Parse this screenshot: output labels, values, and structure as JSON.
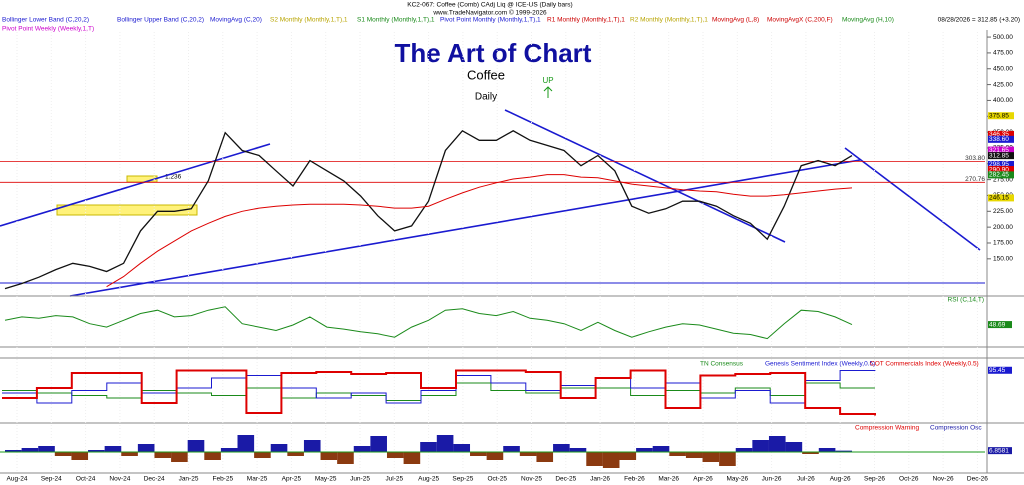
{
  "header": {
    "instrument": "KC2-067:  Coffee (Comb) CAdj Liq @ ICE-US  (Daily bars)",
    "copyright": "www.TradeNavigator.com © 1999-2026",
    "last": "08/28/2026 = 312.85 (+3.20)"
  },
  "indicator_legend": [
    {
      "name": "Bollinger Lower Band (C,20,2)",
      "color": "#1a1ad0"
    },
    {
      "name": "Bollinger Upper Band (C,20,2)",
      "color": "#1a1ad0"
    },
    {
      "name": "MovingAvg (C,20)",
      "color": "#1a1ad0"
    },
    {
      "name": "S2 Monthly (Monthly,1,T),1",
      "color": "#b8a400"
    },
    {
      "name": "S1 Monthly (Monthly,1,T),1",
      "color": "#1a8a1a"
    },
    {
      "name": "Pivot Point Monthly (Monthly,1,T),1",
      "color": "#1a1ad0"
    },
    {
      "name": "R1 Monthly (Monthly,1,T),1",
      "color": "#cc0000"
    },
    {
      "name": "R2 Monthly (Monthly,1,T),1",
      "color": "#b8a400"
    },
    {
      "name": "MovingAvg (L,8)",
      "color": "#cc0000"
    },
    {
      "name": "MovingAvgX (C,200,F)",
      "color": "#cc0000"
    },
    {
      "name": "MovingAvg (H,10)",
      "color": "#1a8a1a"
    },
    {
      "name": "Pivot Point Weekly (Weekly,1,T)",
      "color": "#cc00cc"
    }
  ],
  "time_axis": [
    "Aug-24",
    "Sep-24",
    "Oct-24",
    "Nov-24",
    "Dec-24",
    "Jan-25",
    "Feb-25",
    "Mar-25",
    "Apr-25",
    "May-25",
    "Jun-25",
    "Jul-25",
    "Aug-25",
    "Sep-25",
    "Oct-25",
    "Nov-25",
    "Dec-25",
    "Jan-26",
    "Feb-26",
    "Mar-26",
    "Apr-26",
    "May-26",
    "Jun-26",
    "Jul-26",
    "Aug-26",
    "Sep-26",
    "Oct-26",
    "Nov-26",
    "Dec-26"
  ],
  "chart_data": [
    {
      "type": "line",
      "title": "The Art of Chart",
      "subtitle": "Coffee",
      "period": "Daily",
      "signal": "UP",
      "fib_label": "1.236",
      "ylim": [
        92.9,
        508
      ],
      "yticks": [
        {
          "value": 500,
          "label": "500.00"
        },
        {
          "value": 475,
          "label": "475.00"
        },
        {
          "value": 450,
          "label": "450.00"
        },
        {
          "value": 425,
          "label": "425.00"
        },
        {
          "value": 400,
          "label": "400.00"
        },
        {
          "value": 375,
          "label": "375.00"
        },
        {
          "value": 350,
          "label": "350.00"
        },
        {
          "value": 325,
          "label": "325.00"
        },
        {
          "value": 300,
          "label": "300.00"
        },
        {
          "value": 275,
          "label": "275.00"
        },
        {
          "value": 250,
          "label": "250.00"
        },
        {
          "value": 225,
          "label": "225.00"
        },
        {
          "value": 200,
          "label": "200.00"
        },
        {
          "value": 175,
          "label": "175.00"
        },
        {
          "value": 150,
          "label": "150.00"
        }
      ],
      "series": [
        {
          "name": "Price",
          "color": "#111111",
          "values": [
            103,
            111,
            121,
            133,
            143,
            138,
            130,
            143,
            194,
            225,
            225,
            229,
            273,
            349,
            321,
            313,
            289,
            265,
            305,
            289,
            273,
            249,
            218,
            194,
            202,
            241,
            321,
            352,
            337,
            337,
            352,
            337,
            329,
            321,
            297,
            313,
            289,
            233,
            222,
            229,
            241,
            241,
            233,
            218,
            206,
            181,
            233,
            297,
            305,
            297,
            312.85
          ]
        },
        {
          "name": "MovingAvgX (C,200,F)",
          "color": "#dd0000",
          "values": [
            null,
            null,
            null,
            null,
            null,
            null,
            106,
            122,
            143,
            162,
            178,
            194,
            206,
            217,
            225,
            230,
            233,
            235,
            236,
            236,
            236,
            235,
            233,
            230,
            230,
            233,
            244,
            254,
            263,
            270,
            276,
            279,
            283,
            283,
            279,
            278,
            273,
            268,
            265,
            262,
            259,
            257,
            256,
            252,
            249,
            249,
            251,
            254,
            257,
            260,
            262
          ]
        }
      ],
      "levels": [
        {
          "value": 303.8,
          "label": "303.80",
          "color": "#dd0000"
        },
        {
          "value": 270.76,
          "label": "270.76",
          "color": "#dd0000"
        }
      ],
      "price_tags": [
        {
          "value": 375.85,
          "label": "375.85",
          "color": "#e8d800"
        },
        {
          "value": 346.35,
          "label": "346.35",
          "color": "#dd0000"
        },
        {
          "value": 338.6,
          "label": "338.60",
          "color": "#1a1ad0"
        },
        {
          "value": 321.65,
          "label": "321.65",
          "color": "#cc00cc"
        },
        {
          "value": 312.85,
          "label": "312.85",
          "color": "#111111"
        },
        {
          "value": 298.95,
          "label": "298.95",
          "color": "#1a1ad0"
        },
        {
          "value": 290.9,
          "label": "290.90",
          "color": "#dd0000"
        },
        {
          "value": 282.45,
          "label": "282.45",
          "color": "#1a8a1a"
        },
        {
          "value": 246.15,
          "label": "246.15",
          "color": "#e8d800"
        }
      ]
    },
    {
      "type": "line",
      "title": "RSI (C,14,T)",
      "ylim": [
        20,
        85
      ],
      "series": [
        {
          "name": "RSI",
          "color": "#1a8a1a",
          "values": [
            55,
            60,
            58,
            62,
            60,
            50,
            45,
            55,
            65,
            70,
            60,
            62,
            70,
            75,
            50,
            45,
            40,
            48,
            60,
            45,
            42,
            38,
            35,
            30,
            45,
            55,
            70,
            72,
            65,
            62,
            68,
            58,
            55,
            50,
            40,
            52,
            40,
            30,
            38,
            45,
            50,
            48,
            42,
            36,
            34,
            28,
            50,
            70,
            68,
            60,
            48.69
          ]
        }
      ]
    },
    {
      "type": "step",
      "ylim": [
        0,
        100
      ],
      "series": [
        {
          "name": "TN Consensus",
          "color": "#1a8a1a",
          "values": [
            55,
            50,
            45,
            40,
            55,
            50,
            45,
            60,
            40,
            50,
            45,
            35,
            45,
            70,
            55,
            50,
            60,
            60,
            45,
            55,
            50,
            60,
            45,
            70,
            60,
            60
          ]
        },
        {
          "name": "Genesis Sentiment Index (Weekly,0.5)",
          "color": "#1a1ad0",
          "values": [
            50,
            30,
            55,
            70,
            50,
            60,
            80,
            85,
            60,
            40,
            50,
            30,
            55,
            85,
            70,
            55,
            65,
            80,
            60,
            70,
            40,
            55,
            30,
            75,
            95,
            95.45
          ]
        },
        {
          "name": "COT Commercials Index (Weekly,0.5)",
          "color": "#dd0000",
          "values": [
            40,
            60,
            90,
            90,
            30,
            95,
            95,
            10,
            90,
            92,
            88,
            90,
            60,
            95,
            95,
            92,
            40,
            80,
            95,
            20,
            85,
            88,
            90,
            20,
            8,
            5
          ]
        }
      ]
    },
    {
      "type": "bar",
      "ylim": [
        -100,
        100
      ],
      "warning_name": "Compression Warning",
      "warning_color": "#dd0000",
      "negative_color": "#8b3a10",
      "series": [
        {
          "name": "Compression Osc",
          "color": "#1a1aa6",
          "values": [
            10,
            20,
            30,
            -20,
            -40,
            10,
            30,
            -20,
            40,
            -30,
            -50,
            60,
            -40,
            20,
            85,
            -30,
            40,
            -20,
            60,
            -40,
            -60,
            30,
            80,
            -30,
            -60,
            50,
            85,
            40,
            -20,
            -40,
            30,
            -20,
            -50,
            40,
            20,
            -70,
            -80,
            -40,
            20,
            30,
            -20,
            -30,
            -50,
            -70,
            20,
            60,
            80,
            50,
            -10,
            20,
            6.8581
          ]
        }
      ]
    }
  ]
}
